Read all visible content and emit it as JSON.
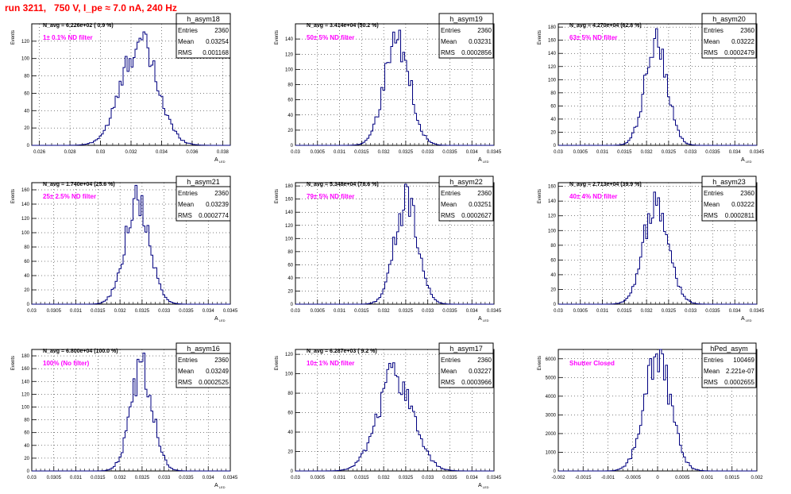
{
  "header": {
    "title": "run 3211,   750 V, I_pe ≈ 7.0 nA, 240 Hz"
  },
  "colors": {
    "histogram": "#000080",
    "annotation": "#ff00ff",
    "title": "#ff0000",
    "grid": "#000000"
  },
  "chart_data": [
    {
      "type": "histogram",
      "name": "h_asym18",
      "navg": "N_avg = 6.226e+02 ( 0.9 %)",
      "filter": "1± 0.1% ND filter",
      "stats": {
        "entries_label": "Entries",
        "entries": "2360",
        "mean_label": "Mean",
        "mean": "0.03254",
        "rms_label": "RMS",
        "rms": "0.001168"
      },
      "ylabel": "Events",
      "xlabel": "A_LED",
      "grid": true,
      "xlim": [
        0.0255,
        0.0385
      ],
      "ylim": [
        0,
        140
      ],
      "xticks": [
        0.026,
        0.028,
        0.03,
        0.032,
        0.034,
        0.036,
        0.038
      ],
      "xtick_labels": [
        "0.026",
        "0.028",
        "0.03",
        "0.032",
        "0.034",
        "0.036",
        "0.038"
      ],
      "yticks": [
        0,
        20,
        40,
        60,
        80,
        100,
        120
      ],
      "mean": 0.03254,
      "sigma": 0.001168,
      "peak": 118
    },
    {
      "type": "histogram",
      "name": "h_asym19",
      "navg": "N_avg = 3.414e+04 (50.2 %)",
      "filter": "50± 5% ND filter",
      "stats": {
        "entries_label": "Entries",
        "entries": "2360",
        "mean_label": "Mean",
        "mean": "0.03231",
        "rms_label": "RMS",
        "rms": "0.0002856"
      },
      "ylabel": "Events",
      "xlabel": "A_LED",
      "grid": true,
      "xlim": [
        0.03,
        0.0345
      ],
      "ylim": [
        0,
        160
      ],
      "xticks": [
        0.03,
        0.0305,
        0.031,
        0.0315,
        0.032,
        0.0325,
        0.033,
        0.0335,
        0.034,
        0.0345
      ],
      "xtick_labels": [
        "0.03",
        "0.0305",
        "0.031",
        "0.0315",
        "0.032",
        "0.0325",
        "0.033",
        "0.0335",
        "0.034",
        "0.0345"
      ],
      "yticks": [
        0,
        20,
        40,
        60,
        80,
        100,
        120,
        140
      ],
      "mean": 0.03231,
      "sigma": 0.0002856,
      "peak": 140
    },
    {
      "type": "histogram",
      "name": "h_asym20",
      "navg": "N_avg = 4.270e+04 (62.8 %)",
      "filter": "63± 5% ND filter",
      "stats": {
        "entries_label": "Entries",
        "entries": "2360",
        "mean_label": "Mean",
        "mean": "0.03222",
        "rms_label": "RMS",
        "rms": "0.0002479"
      },
      "ylabel": "Events",
      "xlabel": "A_LED",
      "grid": true,
      "xlim": [
        0.03,
        0.0345
      ],
      "ylim": [
        0,
        185
      ],
      "xticks": [
        0.03,
        0.0305,
        0.031,
        0.0315,
        0.032,
        0.0325,
        0.033,
        0.0335,
        0.034,
        0.0345
      ],
      "xtick_labels": [
        "0.03",
        "0.0305",
        "0.031",
        "0.0315",
        "0.032",
        "0.0325",
        "0.033",
        "0.0335",
        "0.034",
        "0.0345"
      ],
      "yticks": [
        0,
        20,
        40,
        60,
        80,
        100,
        120,
        140,
        160,
        180
      ],
      "mean": 0.03222,
      "sigma": 0.0002479,
      "peak": 162
    },
    {
      "type": "histogram",
      "name": "h_asym21",
      "navg": "N_avg = 1.740e+04 (25.6 %)",
      "filter": "25± 2.5% ND filter",
      "stats": {
        "entries_label": "Entries",
        "entries": "2360",
        "mean_label": "Mean",
        "mean": "0.03239",
        "rms_label": "RMS",
        "rms": "0.0002774"
      },
      "ylabel": "Events",
      "xlabel": "A_LED",
      "grid": true,
      "xlim": [
        0.03,
        0.0345
      ],
      "ylim": [
        0,
        170
      ],
      "xticks": [
        0.03,
        0.0305,
        0.031,
        0.0315,
        0.032,
        0.0325,
        0.033,
        0.0335,
        0.034,
        0.0345
      ],
      "xtick_labels": [
        "0.03",
        "0.0305",
        "0.031",
        "0.0315",
        "0.032",
        "0.0325",
        "0.033",
        "0.0335",
        "0.034",
        "0.0345"
      ],
      "yticks": [
        0,
        20,
        40,
        60,
        80,
        100,
        120,
        140,
        160
      ],
      "mean": 0.03239,
      "sigma": 0.0002774,
      "peak": 146
    },
    {
      "type": "histogram",
      "name": "h_asym22",
      "navg": "N_avg = 5.348e+04 (78.6 %)",
      "filter": "79± 5% ND filter",
      "stats": {
        "entries_label": "Entries",
        "entries": "2360",
        "mean_label": "Mean",
        "mean": "0.03251",
        "rms_label": "RMS",
        "rms": "0.0002627"
      },
      "ylabel": "Events",
      "xlabel": "A_LED",
      "grid": true,
      "xlim": [
        0.03,
        0.0345
      ],
      "ylim": [
        0,
        185
      ],
      "xticks": [
        0.03,
        0.0305,
        0.031,
        0.0315,
        0.032,
        0.0325,
        0.033,
        0.0335,
        0.034,
        0.0345
      ],
      "xtick_labels": [
        "0.03",
        "0.0305",
        "0.031",
        "0.0315",
        "0.032",
        "0.0325",
        "0.033",
        "0.0335",
        "0.034",
        "0.0345"
      ],
      "yticks": [
        0,
        20,
        40,
        60,
        80,
        100,
        120,
        140,
        160,
        180
      ],
      "mean": 0.03251,
      "sigma": 0.0002627,
      "peak": 156
    },
    {
      "type": "histogram",
      "name": "h_asym23",
      "navg": "N_avg = 2.713e+04 (39.9 %)",
      "filter": "40± 4% ND filter",
      "stats": {
        "entries_label": "Entries",
        "entries": "2360",
        "mean_label": "Mean",
        "mean": "0.03222",
        "rms_label": "RMS",
        "rms": "0.0002811"
      },
      "ylabel": "Events",
      "xlabel": "A_LED",
      "grid": true,
      "xlim": [
        0.03,
        0.0345
      ],
      "ylim": [
        0,
        165
      ],
      "xticks": [
        0.03,
        0.0305,
        0.031,
        0.0315,
        0.032,
        0.0325,
        0.033,
        0.0335,
        0.034,
        0.0345
      ],
      "xtick_labels": [
        "0.03",
        "0.0305",
        "0.031",
        "0.0315",
        "0.032",
        "0.0325",
        "0.033",
        "0.0335",
        "0.034",
        "0.0345"
      ],
      "yticks": [
        0,
        20,
        40,
        60,
        80,
        100,
        120,
        140,
        160
      ],
      "mean": 0.03222,
      "sigma": 0.0002811,
      "peak": 145
    },
    {
      "type": "histogram",
      "name": "h_asym16",
      "navg": "N_avg = 6.800e+04 (100.0 %)",
      "filter": "100% (No filter)",
      "stats": {
        "entries_label": "Entries",
        "entries": "2360",
        "mean_label": "Mean",
        "mean": "0.03249",
        "rms_label": "RMS",
        "rms": "0.0002525"
      },
      "ylabel": "Events",
      "xlabel": "A_LED",
      "grid": true,
      "xlim": [
        0.03,
        0.0345
      ],
      "ylim": [
        0,
        190
      ],
      "xticks": [
        0.03,
        0.0305,
        0.031,
        0.0315,
        0.032,
        0.0325,
        0.033,
        0.0335,
        0.034,
        0.0345
      ],
      "xtick_labels": [
        "0.03",
        "0.0305",
        "0.031",
        "0.0315",
        "0.032",
        "0.0325",
        "0.033",
        "0.0335",
        "0.034",
        "0.0345"
      ],
      "yticks": [
        0,
        20,
        40,
        60,
        80,
        100,
        120,
        140,
        160,
        180
      ],
      "mean": 0.03249,
      "sigma": 0.0002525,
      "peak": 160
    },
    {
      "type": "histogram",
      "name": "h_asym17",
      "navg": "N_avg = 6.287e+03 ( 9.2 %)",
      "filter": "10± 1% ND filter",
      "stats": {
        "entries_label": "Entries",
        "entries": "2360",
        "mean_label": "Mean",
        "mean": "0.03227",
        "rms_label": "RMS",
        "rms": "0.0003966"
      },
      "ylabel": "Events",
      "xlabel": "A_LED",
      "grid": true,
      "xlim": [
        0.03,
        0.0345
      ],
      "ylim": [
        0,
        125
      ],
      "xticks": [
        0.03,
        0.0305,
        0.031,
        0.0315,
        0.032,
        0.0325,
        0.033,
        0.0335,
        0.034,
        0.0345
      ],
      "xtick_labels": [
        "0.03",
        "0.0305",
        "0.031",
        "0.0315",
        "0.032",
        "0.0325",
        "0.033",
        "0.0335",
        "0.034",
        "0.0345"
      ],
      "yticks": [
        0,
        20,
        40,
        60,
        80,
        100,
        120
      ],
      "mean": 0.03227,
      "sigma": 0.0003966,
      "peak": 100
    },
    {
      "type": "histogram",
      "name": "hPed_asym",
      "navg": "",
      "filter": "Shutter Closed",
      "stats": {
        "entries_label": "Entries",
        "entries": "100469",
        "mean_label": "Mean",
        "mean": "2.221e-07",
        "rms_label": "RMS",
        "rms": "0.0002655"
      },
      "ylabel": "Events",
      "xlabel": "",
      "grid": true,
      "xlim": [
        -0.002,
        0.002
      ],
      "ylim": [
        0,
        6500
      ],
      "xticks": [
        -0.002,
        -0.0015,
        -0.001,
        -0.0005,
        0,
        0.0005,
        0.001,
        0.0015,
        0.002
      ],
      "xtick_labels": [
        "-0.002",
        "-0.0015",
        "-0.001",
        "-0.0005",
        "0",
        "0.0005",
        "0.001",
        "0.0015",
        "0.002"
      ],
      "yticks": [
        0,
        1000,
        2000,
        3000,
        4000,
        5000,
        6000
      ],
      "mean": 2.221e-07,
      "sigma": 0.0002655,
      "peak": 6100
    }
  ]
}
